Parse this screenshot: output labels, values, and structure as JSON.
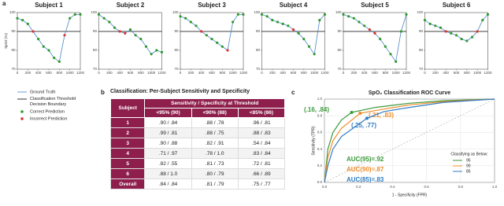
{
  "panel_labels": [
    "a",
    "b",
    "c"
  ],
  "chart_data": [
    {
      "type": "line",
      "title": "Subject 1",
      "ylabel": "SpO2 (%)",
      "x": [
        0,
        100,
        200,
        300,
        400,
        500,
        600,
        700,
        800,
        900,
        1000,
        1100,
        1200
      ],
      "xlim": [
        0,
        1200
      ],
      "xticks": [
        0,
        200,
        400,
        600,
        800,
        1000,
        1200
      ],
      "ylim": [
        70,
        100
      ],
      "yticks": [
        70,
        80,
        90,
        100
      ],
      "threshold": 90,
      "threshold_color": "#000000",
      "threshold_label": "Classification Threshold Decision Boundary",
      "series": [
        {
          "name": "Ground Truth",
          "color": "#4a86c8",
          "kind": "line",
          "values": [
            97,
            96,
            94,
            90,
            86,
            82,
            80,
            76,
            74,
            88,
            97,
            99,
            99
          ]
        },
        {
          "name": "Correct Prediction",
          "color": "#2e9a2e",
          "kind": "scatter",
          "values": [
            97,
            96,
            94,
            null,
            86,
            82,
            80,
            76,
            74,
            null,
            97,
            99,
            99
          ]
        },
        {
          "name": "Incorrect Prediction",
          "color": "#e03030",
          "kind": "scatter",
          "values": [
            null,
            null,
            null,
            90,
            null,
            null,
            null,
            null,
            null,
            88,
            null,
            null,
            null
          ]
        }
      ]
    },
    {
      "type": "line",
      "title": "Subject 2",
      "x": [
        0,
        100,
        200,
        300,
        400,
        500,
        600,
        700,
        800,
        900,
        1000,
        1100,
        1200
      ],
      "xlim": [
        0,
        1200
      ],
      "xticks": [
        0,
        200,
        400,
        600,
        800,
        1000,
        1200
      ],
      "ylim": [
        70,
        100
      ],
      "yticks": [
        70,
        80,
        90,
        100
      ],
      "threshold": 90,
      "threshold_color": "#000000",
      "series": [
        {
          "color": "#4a86c8",
          "kind": "line",
          "values": [
            99,
            97,
            95,
            92,
            90,
            89,
            91,
            88,
            86,
            82,
            78,
            80,
            79
          ]
        },
        {
          "color": "#2e9a2e",
          "kind": "scatter",
          "values": [
            99,
            97,
            95,
            92,
            null,
            null,
            91,
            88,
            86,
            82,
            78,
            80,
            79
          ]
        },
        {
          "color": "#e03030",
          "kind": "scatter",
          "values": [
            null,
            null,
            null,
            null,
            90,
            89,
            null,
            null,
            null,
            null,
            null,
            null,
            null
          ]
        }
      ]
    },
    {
      "type": "line",
      "title": "Subject 3",
      "x": [
        0,
        100,
        200,
        300,
        400,
        500,
        600,
        700,
        800,
        900,
        1000,
        1100,
        1200
      ],
      "xlim": [
        0,
        1200
      ],
      "xticks": [
        0,
        200,
        400,
        600,
        800,
        1000,
        1200
      ],
      "ylim": [
        70,
        100
      ],
      "yticks": [
        70,
        80,
        90,
        100
      ],
      "threshold": 90,
      "threshold_color": "#000000",
      "series": [
        {
          "color": "#4a86c8",
          "kind": "line",
          "values": [
            98,
            97,
            95,
            93,
            90,
            88,
            86,
            84,
            82,
            80,
            95,
            99,
            99
          ]
        },
        {
          "color": "#2e9a2e",
          "kind": "scatter",
          "values": [
            98,
            97,
            95,
            93,
            null,
            88,
            86,
            84,
            82,
            null,
            95,
            99,
            99
          ]
        },
        {
          "color": "#e03030",
          "kind": "scatter",
          "values": [
            null,
            null,
            null,
            null,
            90,
            null,
            null,
            null,
            null,
            80,
            null,
            null,
            null
          ]
        }
      ]
    },
    {
      "type": "line",
      "title": "Subject 4",
      "x": [
        0,
        100,
        200,
        300,
        400,
        500,
        600,
        700,
        800,
        900,
        1000,
        1100,
        1200
      ],
      "xlim": [
        0,
        1200
      ],
      "xticks": [
        0,
        200,
        400,
        600,
        800,
        1000,
        1200
      ],
      "ylim": [
        70,
        100
      ],
      "yticks": [
        70,
        80,
        90,
        100
      ],
      "threshold": 90,
      "threshold_color": "#000000",
      "series": [
        {
          "color": "#4a86c8",
          "kind": "line",
          "values": [
            99,
            98,
            96,
            95,
            94,
            93,
            91,
            89,
            86,
            82,
            78,
            96,
            99
          ]
        },
        {
          "color": "#2e9a2e",
          "kind": "scatter",
          "values": [
            99,
            98,
            96,
            95,
            94,
            93,
            null,
            89,
            86,
            82,
            78,
            96,
            99
          ]
        },
        {
          "color": "#e03030",
          "kind": "scatter",
          "values": [
            null,
            null,
            null,
            null,
            null,
            null,
            91,
            null,
            null,
            null,
            null,
            null,
            null
          ]
        }
      ]
    },
    {
      "type": "line",
      "title": "Subject 5",
      "x": [
        0,
        100,
        200,
        300,
        400,
        500,
        600,
        700,
        800,
        900,
        1000,
        1100,
        1200
      ],
      "xlim": [
        0,
        1200
      ],
      "xticks": [
        0,
        200,
        400,
        600,
        800,
        1000,
        1200
      ],
      "ylim": [
        70,
        100
      ],
      "yticks": [
        70,
        80,
        90,
        100
      ],
      "threshold": 90,
      "threshold_color": "#000000",
      "series": [
        {
          "color": "#4a86c8",
          "kind": "line",
          "values": [
            99,
            98,
            97,
            95,
            93,
            91,
            89,
            86,
            82,
            78,
            74,
            90,
            99
          ]
        },
        {
          "color": "#2e9a2e",
          "kind": "scatter",
          "values": [
            99,
            98,
            97,
            95,
            93,
            null,
            null,
            86,
            82,
            78,
            74,
            90,
            99
          ]
        },
        {
          "color": "#e03030",
          "kind": "scatter",
          "values": [
            null,
            null,
            null,
            null,
            null,
            91,
            89,
            null,
            null,
            null,
            null,
            null,
            null
          ]
        }
      ]
    },
    {
      "type": "line",
      "title": "Subject 6",
      "x": [
        0,
        100,
        200,
        300,
        400,
        500,
        600,
        700,
        800,
        900,
        1000,
        1100,
        1200
      ],
      "xlim": [
        0,
        1200
      ],
      "xticks": [
        0,
        200,
        400,
        600,
        800,
        1000,
        1200
      ],
      "ylim": [
        70,
        100
      ],
      "yticks": [
        70,
        80,
        90,
        100
      ],
      "threshold": 90,
      "threshold_color": "#000000",
      "series": [
        {
          "color": "#4a86c8",
          "kind": "line",
          "values": [
            96,
            94,
            93,
            92,
            90,
            89,
            88,
            86,
            85,
            87,
            90,
            96,
            99
          ]
        },
        {
          "color": "#2e9a2e",
          "kind": "scatter",
          "values": [
            96,
            94,
            93,
            92,
            null,
            89,
            88,
            86,
            85,
            87,
            null,
            96,
            99
          ]
        },
        {
          "color": "#e03030",
          "kind": "scatter",
          "values": [
            null,
            null,
            null,
            null,
            90,
            null,
            null,
            null,
            null,
            null,
            90,
            null,
            null
          ]
        }
      ]
    },
    {
      "type": "roc",
      "title": "SpO₂ Classification ROC Curve",
      "xlabel": "1 - Specificity (FPR)",
      "ylabel": "Sensitivity (TPR)",
      "grid": true,
      "xlim": [
        0,
        1
      ],
      "ylim": [
        0,
        1
      ],
      "xticks": [
        {
          "value": 0,
          "label": "0.0"
        },
        {
          "value": 0.2,
          "label": "0.2"
        },
        {
          "value": 0.4,
          "label": "0.4"
        },
        {
          "value": 0.6,
          "label": "0.6"
        },
        {
          "value": 0.8,
          "label": "0.8"
        },
        {
          "value": 1,
          "label": "1.0"
        }
      ],
      "yticks": [
        {
          "value": 0,
          "label": "0.0"
        },
        {
          "value": 0.2,
          "label": "0.2"
        },
        {
          "value": 0.4,
          "label": "0.4"
        },
        {
          "value": 0.6,
          "label": "0.6"
        },
        {
          "value": 0.8,
          "label": "0.8"
        },
        {
          "value": 1,
          "label": "1.0"
        }
      ],
      "legend_title": "Classifying as Below:",
      "series": [
        {
          "name": "95",
          "color": "#3a9a3a",
          "x": [
            0,
            0.02,
            0.05,
            0.1,
            0.16,
            0.3,
            0.5,
            0.7,
            1
          ],
          "values": [
            0,
            0.4,
            0.6,
            0.75,
            0.84,
            0.9,
            0.95,
            0.98,
            1
          ],
          "auc_label": "AUC(95)=.92",
          "point": {
            "text": "(.16, .84)",
            "x": 0.16,
            "y": 0.84
          }
        },
        {
          "name": "90",
          "color": "#f08c28",
          "x": [
            0,
            0.02,
            0.05,
            0.1,
            0.21,
            0.35,
            0.5,
            0.7,
            1
          ],
          "values": [
            0,
            0.3,
            0.5,
            0.65,
            0.83,
            0.88,
            0.93,
            0.97,
            1
          ],
          "auc_label": "AUC(90)=.87",
          "point": {
            "text": "(.21, .83)",
            "x": 0.21,
            "y": 0.83
          }
        },
        {
          "name": "85",
          "color": "#2f7cc4",
          "x": [
            0,
            0.02,
            0.05,
            0.1,
            0.25,
            0.35,
            0.5,
            0.7,
            1
          ],
          "values": [
            0,
            0.2,
            0.4,
            0.55,
            0.77,
            0.85,
            0.9,
            0.96,
            1
          ],
          "auc_label": "AUC(85)=.83",
          "point": {
            "text": "(.25, .77)",
            "x": 0.25,
            "y": 0.77
          }
        }
      ]
    }
  ],
  "table": {
    "title": "Classification: Per-Subject Sensitivity and Specificity",
    "header": [
      "Subject",
      "Sensitivity / Specificity at Threshold"
    ],
    "subheader": [
      "<95% (90)",
      "<90% (88)",
      "<85% (86)"
    ],
    "rows": [
      [
        "1",
        ".90 / .84",
        ".88 / .78",
        ".96 / .81"
      ],
      [
        "2",
        ".99 / .81",
        ".88 / .75",
        ".88 / .83"
      ],
      [
        "3",
        ".90 / .88",
        ".82 / .91",
        ".54 / .84"
      ],
      [
        "4",
        ".71 / .97",
        ".78 / 1.0",
        ".83 / .84"
      ],
      [
        "5",
        ".82 / .55",
        ".81 / .73",
        ".72 / .81"
      ],
      [
        "6",
        ".88 / 1.0",
        ".80 / .79",
        ".66 / .89"
      ],
      [
        "Overall",
        ".84 / .84",
        ".81 / .79",
        ".75 / .77"
      ]
    ]
  }
}
